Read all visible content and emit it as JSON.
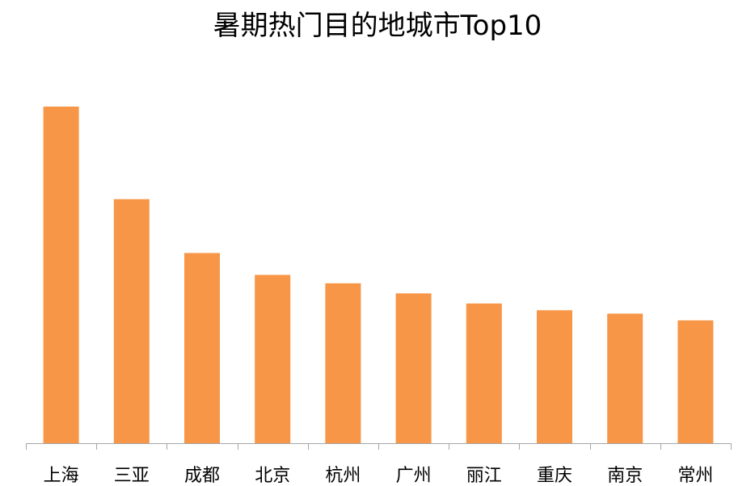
{
  "chart_data": {
    "type": "bar",
    "title": "暑期热门目的地城市Top10",
    "xlabel": "",
    "ylabel": "",
    "categories": [
      "上海",
      "三亚",
      "成都",
      "北京",
      "杭州",
      "广州",
      "丽江",
      "重庆",
      "南京",
      "常州"
    ],
    "values": [
      100,
      72.5,
      56.5,
      50,
      47.5,
      44.5,
      41.5,
      39.5,
      38.5,
      36.5
    ],
    "ylim": [
      0,
      100
    ],
    "grid": false,
    "legend": "none",
    "bar_color": "#F79646",
    "axis_color": "#A6A6A6"
  }
}
